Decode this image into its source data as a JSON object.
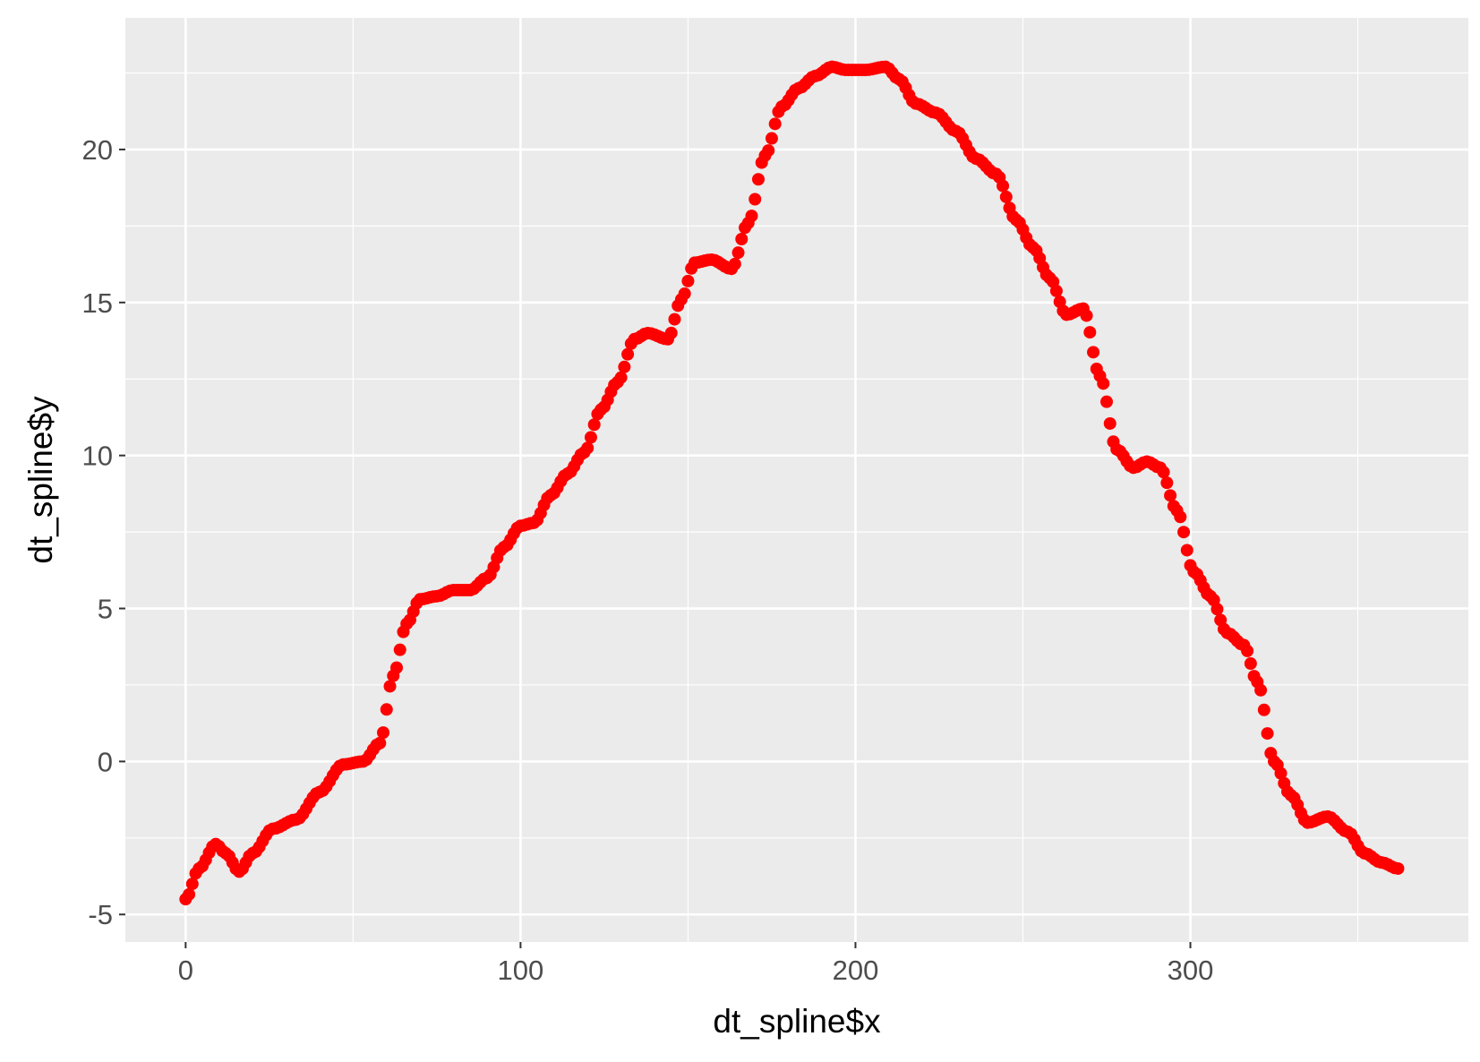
{
  "chart_data": {
    "type": "scatter",
    "xlabel": "dt_spline$x",
    "ylabel": "dt_spline$y",
    "xlim": [
      -18,
      383
    ],
    "ylim": [
      -5.9,
      24.3
    ],
    "x_ticks": [
      0,
      100,
      200,
      300
    ],
    "x_tick_labels": [
      "0",
      "100",
      "200",
      "300"
    ],
    "x_minor_ticks": [
      50,
      150,
      250,
      350
    ],
    "y_ticks": [
      -5,
      0,
      5,
      10,
      15,
      20
    ],
    "y_tick_labels": [
      "-5",
      "0",
      "5",
      "10",
      "15",
      "20"
    ],
    "y_minor_ticks": [
      -2.5,
      2.5,
      7.5,
      12.5,
      17.5,
      22.5
    ],
    "grid": true,
    "legend": "none",
    "colors": {
      "panel_background": "#ebebeb",
      "grid_line": "#ffffff",
      "point": "#ff0000",
      "tick_label": "#4d4d4d",
      "axis_title": "#000000"
    },
    "key_points": {
      "x": [
        0,
        4,
        9,
        12,
        16,
        20,
        26,
        33,
        40,
        47,
        53,
        58,
        62,
        66,
        70,
        75,
        80,
        85,
        90,
        95,
        100,
        104,
        109,
        114,
        119,
        124,
        129,
        134,
        138,
        144,
        148,
        152,
        157,
        163,
        168,
        173,
        178,
        183,
        188,
        193,
        197,
        203,
        209,
        213,
        218,
        224,
        230,
        236,
        242,
        248,
        253,
        258,
        263,
        268,
        273,
        278,
        283,
        287,
        291,
        296,
        301,
        306,
        311,
        316,
        320,
        325,
        330,
        335,
        341,
        347,
        352,
        357,
        362
      ],
      "y": [
        -4.5,
        -3.5,
        -2.7,
        -3.0,
        -3.6,
        -3.0,
        -2.2,
        -1.9,
        -1.0,
        -0.1,
        0.0,
        0.6,
        2.8,
        4.5,
        5.3,
        5.4,
        5.6,
        5.6,
        6.0,
        7.0,
        7.7,
        7.8,
        8.7,
        9.4,
        10.1,
        11.5,
        12.4,
        13.8,
        14.0,
        13.8,
        15.1,
        16.3,
        16.4,
        16.1,
        17.6,
        19.8,
        21.4,
        22.0,
        22.4,
        22.7,
        22.6,
        22.6,
        22.7,
        22.3,
        21.5,
        21.2,
        20.6,
        19.7,
        19.2,
        17.7,
        16.8,
        15.8,
        14.6,
        14.8,
        12.6,
        10.2,
        9.6,
        9.8,
        9.6,
        8.2,
        6.2,
        5.4,
        4.2,
        3.8,
        2.6,
        0.0,
        -1.1,
        -2.0,
        -1.8,
        -2.3,
        -3.0,
        -3.3,
        -3.5
      ]
    }
  }
}
